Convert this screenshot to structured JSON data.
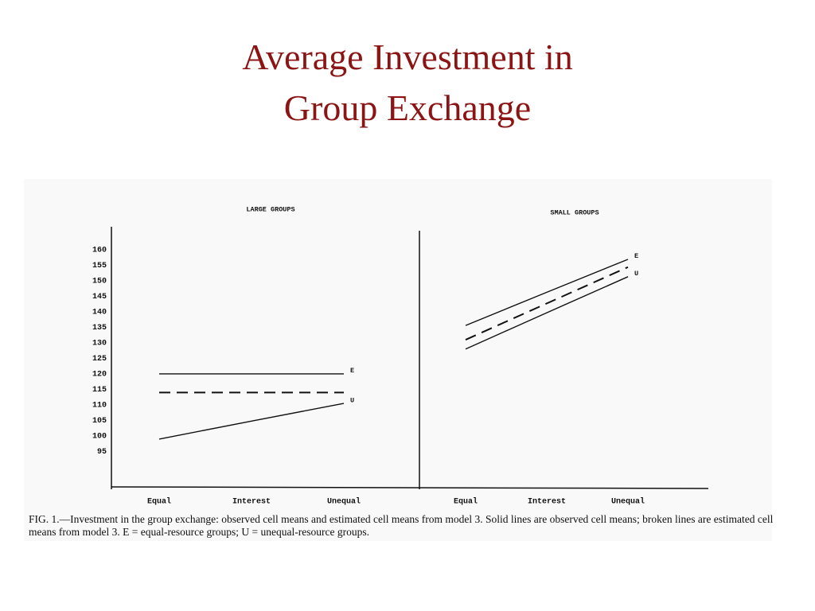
{
  "slide": {
    "title_lines": [
      "Average Investment in",
      "Group Exchange"
    ]
  },
  "chart_data": [
    {
      "type": "line",
      "title": "LARGE GROUPS",
      "categories": [
        "Equal",
        "Interest",
        "Unequal"
      ],
      "ylim": [
        83.6,
        167.4
      ],
      "yticks": [
        95,
        100,
        105,
        110,
        115,
        120,
        125,
        130,
        135,
        140,
        145,
        150,
        155,
        160
      ],
      "grid": false,
      "series": [
        {
          "name": "E",
          "color": "#111111",
          "style": "solid",
          "values": [
            120,
            120,
            120
          ]
        },
        {
          "color": "#111111",
          "style": "dashed",
          "values": [
            114,
            114,
            114
          ]
        },
        {
          "name": "U",
          "color": "#111111",
          "style": "solid",
          "values": [
            99,
            104.8,
            110.5
          ]
        }
      ]
    },
    {
      "type": "line",
      "title": "SMALL GROUPS",
      "categories": [
        "Equal",
        "Interest",
        "Unequal"
      ],
      "ylim": [
        83.6,
        167.4
      ],
      "grid": false,
      "series": [
        {
          "name": "E",
          "color": "#111111",
          "style": "solid",
          "values": [
            135.6,
            146.3,
            156.9
          ]
        },
        {
          "color": "#111111",
          "style": "dashed",
          "values": [
            131,
            142.7,
            154.4
          ]
        },
        {
          "name": "U",
          "color": "#111111",
          "style": "solid",
          "values": [
            128,
            139.7,
            151.3
          ]
        }
      ]
    }
  ],
  "caption": "FIG. 1.—Investment in the group exchange: observed cell means and estimated cell means from model 3. Solid lines are observed cell means; broken lines are estimated cell means from model 3. E = equal-resource groups; U = unequal-resource groups."
}
